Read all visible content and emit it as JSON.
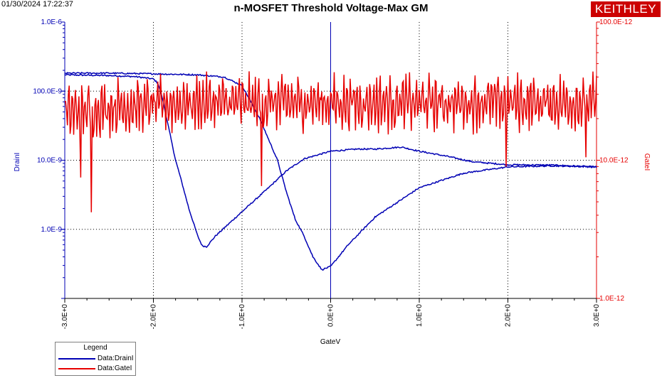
{
  "timestamp": "01/30/2024 17:22:37",
  "brand": "KEITHLEY",
  "legend": {
    "title": "Legend",
    "items": [
      "Data:DrainI",
      "Data:GateI"
    ]
  },
  "colors": {
    "drain": "#0000b4",
    "gate": "#e60000",
    "grid": "#000000"
  },
  "chart_data": {
    "type": "line",
    "title": "n-MOSFET Threshold Voltage-Max GM",
    "xlabel": "GateV",
    "ylabel_left": "DrainI",
    "ylabel_right": "GateI",
    "xlim": [
      -3.0,
      3.0
    ],
    "ylim_left": [
      1e-10,
      1e-06
    ],
    "ylim_right": [
      1e-12,
      1e-10
    ],
    "y_scale": "log",
    "x_ticks": [
      "-3.0E+0",
      "-2.0E+0",
      "-1.0E+0",
      "0.0E+0",
      "1.0E+0",
      "2.0E+0",
      "3.0E+0"
    ],
    "y_ticks_left": [
      "1.0E-6",
      "100.0E-9",
      "10.0E-9",
      "1.0E-9"
    ],
    "y_ticks_right": [
      "100.0E-12",
      "10.0E-12",
      "1.0E-12"
    ],
    "grid": true,
    "series": [
      {
        "name": "Data:DrainI",
        "axis": "left",
        "sweep": "forward",
        "x": [
          -3.0,
          -2.5,
          -2.2,
          -2.0,
          -1.95,
          -1.9,
          -1.85,
          -1.8,
          -1.75,
          -1.7,
          -1.6,
          -1.5,
          -1.45,
          -1.4,
          -1.3,
          -1.0,
          -0.7,
          -0.5,
          -0.3,
          0.0,
          0.3,
          0.5,
          0.8,
          1.0,
          1.3,
          1.6,
          2.0,
          2.5,
          3.0
        ],
        "y": [
          1.72e-07,
          1.68e-07,
          1.62e-07,
          1.5e-07,
          1.3e-07,
          8e-08,
          4e-08,
          2e-08,
          1e-08,
          6e-09,
          2e-09,
          8e-10,
          5.8e-10,
          5.6e-10,
          8e-10,
          1.8e-09,
          4e-09,
          7e-09,
          1.05e-08,
          1.35e-08,
          1.45e-08,
          1.45e-08,
          1.55e-08,
          1.35e-08,
          1.15e-08,
          9.5e-09,
          8.6e-09,
          8.5e-09,
          8e-09
        ]
      },
      {
        "name": "Data:DrainI",
        "axis": "left",
        "sweep": "reverse",
        "x": [
          -3.0,
          -2.5,
          -2.0,
          -1.5,
          -1.2,
          -1.0,
          -0.9,
          -0.8,
          -0.6,
          -0.5,
          -0.4,
          -0.3,
          -0.2,
          -0.1,
          0.0,
          0.2,
          0.5,
          1.0,
          1.5,
          2.0,
          2.5,
          3.0
        ],
        "y": [
          1.82e-07,
          1.82e-07,
          1.78e-07,
          1.72e-07,
          1.6e-07,
          1.2e-07,
          7e-08,
          4e-08,
          1e-08,
          3.5e-09,
          1.4e-09,
          8e-10,
          4e-10,
          2.6e-10,
          2.9e-10,
          6e-10,
          1.5e-09,
          4e-09,
          6.5e-09,
          8e-09,
          8.3e-09,
          8e-09
        ]
      },
      {
        "name": "Data:GateI",
        "axis": "right",
        "noisy": true,
        "x": [
          -3.0,
          -2.5,
          -2.0,
          -1.5,
          -1.0,
          -0.5,
          0.0,
          0.5,
          1.0,
          1.5,
          2.0,
          2.5,
          3.0
        ],
        "y": [
          2.2e-11,
          2.4e-11,
          2.5e-11,
          2.6e-11,
          2.6e-11,
          2.6e-11,
          2.6e-11,
          2.6e-11,
          2.6e-11,
          2.6e-11,
          2.6e-11,
          2.6e-11,
          2.6e-11
        ],
        "spikes": [
          {
            "x": -2.7,
            "y": 4.2e-12
          },
          {
            "x": -2.82,
            "y": 7.5e-12
          },
          {
            "x": -0.78,
            "y": 6.5e-12
          },
          {
            "x": 1.98,
            "y": 9e-12
          },
          {
            "x": 2.88,
            "y": 1.05e-11
          }
        ]
      }
    ]
  }
}
